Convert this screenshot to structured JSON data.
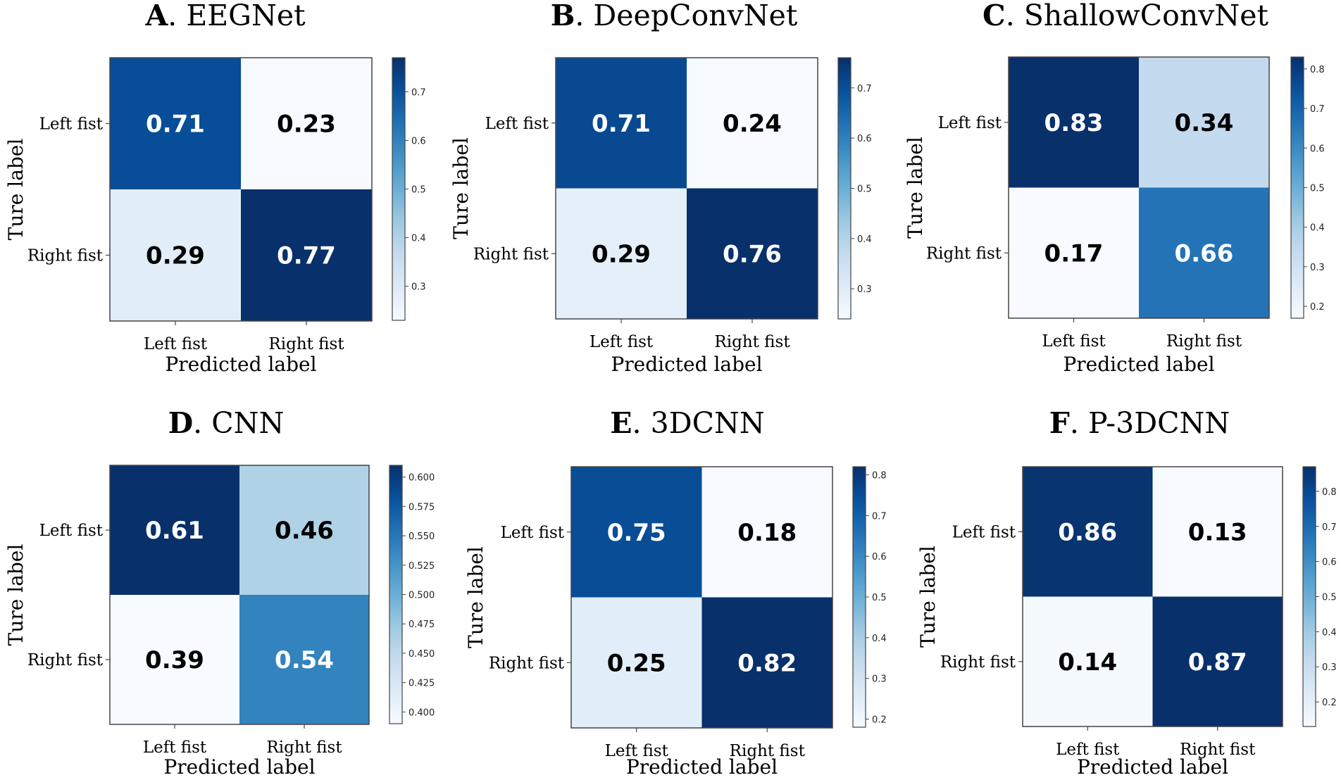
{
  "chart_data": [
    {
      "type": "heatmap",
      "letter": "A",
      "title": "EEGNet",
      "xlabel": "Predicted label",
      "ylabel": "Ture label",
      "x_categories": [
        "Left fist",
        "Right fist"
      ],
      "y_categories": [
        "Left fist",
        "Right fist"
      ],
      "values": [
        [
          "0.71",
          "0.23"
        ],
        [
          "0.29",
          "0.77"
        ]
      ],
      "colorbar": {
        "range": [
          0.23,
          0.77
        ],
        "ticks": [
          "0.3",
          "0.4",
          "0.5",
          "0.6",
          "0.7"
        ]
      }
    },
    {
      "type": "heatmap",
      "letter": "B",
      "title": "DeepConvNet",
      "xlabel": "Predicted label",
      "ylabel": "Ture label",
      "x_categories": [
        "Left fist",
        "Right fist"
      ],
      "y_categories": [
        "Left fist",
        "Right fist"
      ],
      "values": [
        [
          "0.71",
          "0.24"
        ],
        [
          "0.29",
          "0.76"
        ]
      ],
      "colorbar": {
        "range": [
          0.24,
          0.76
        ],
        "ticks": [
          "0.3",
          "0.4",
          "0.5",
          "0.6",
          "0.7"
        ]
      }
    },
    {
      "type": "heatmap",
      "letter": "C",
      "title": "ShallowConvNet",
      "xlabel": "Predicted label",
      "ylabel": "Ture label",
      "x_categories": [
        "Left fist",
        "Right fist"
      ],
      "y_categories": [
        "Left fist",
        "Right fist"
      ],
      "values": [
        [
          "0.83",
          "0.34"
        ],
        [
          "0.17",
          "0.66"
        ]
      ],
      "colorbar": {
        "range": [
          0.17,
          0.83
        ],
        "ticks": [
          "0.2",
          "0.3",
          "0.4",
          "0.5",
          "0.6",
          "0.7",
          "0.8"
        ]
      }
    },
    {
      "type": "heatmap",
      "letter": "D",
      "title": "CNN",
      "xlabel": "Predicted label",
      "ylabel": "Ture label",
      "x_categories": [
        "Left fist",
        "Right fist"
      ],
      "y_categories": [
        "Left fist",
        "Right fist"
      ],
      "values": [
        [
          "0.61",
          "0.46"
        ],
        [
          "0.39",
          "0.54"
        ]
      ],
      "colorbar": {
        "range": [
          0.39,
          0.61
        ],
        "ticks": [
          "0.400",
          "0.425",
          "0.450",
          "0.475",
          "0.500",
          "0.525",
          "0.550",
          "0.575",
          "0.600"
        ]
      }
    },
    {
      "type": "heatmap",
      "letter": "E",
      "title": "3DCNN",
      "xlabel": "Predicted label",
      "ylabel": "Ture label",
      "x_categories": [
        "Left fist",
        "Right fist"
      ],
      "y_categories": [
        "Left fist",
        "Right fist"
      ],
      "values": [
        [
          "0.75",
          "0.18"
        ],
        [
          "0.25",
          "0.82"
        ]
      ],
      "colorbar": {
        "range": [
          0.18,
          0.82
        ],
        "ticks": [
          "0.2",
          "0.3",
          "0.4",
          "0.5",
          "0.6",
          "0.7",
          "0.8"
        ]
      }
    },
    {
      "type": "heatmap",
      "letter": "F",
      "title": "P-3DCNN",
      "xlabel": "Predicted label",
      "ylabel": "Ture label",
      "x_categories": [
        "Left fist",
        "Right fist"
      ],
      "y_categories": [
        "Left fist",
        "Right fist"
      ],
      "values": [
        [
          "0.86",
          "0.13"
        ],
        [
          "0.14",
          "0.87"
        ]
      ],
      "colorbar": {
        "range": [
          0.13,
          0.87
        ],
        "ticks": [
          "0.2",
          "0.3",
          "0.4",
          "0.5",
          "0.6",
          "0.7",
          "0.8"
        ]
      }
    }
  ],
  "colors": {
    "colormap": [
      "#f7fbff",
      "#deebf7",
      "#c6dbef",
      "#9ecae1",
      "#6baed6",
      "#4292c6",
      "#2171b5",
      "#08519c",
      "#08306b"
    ],
    "text_dark": "#000000",
    "text_light": "#ffffff"
  }
}
